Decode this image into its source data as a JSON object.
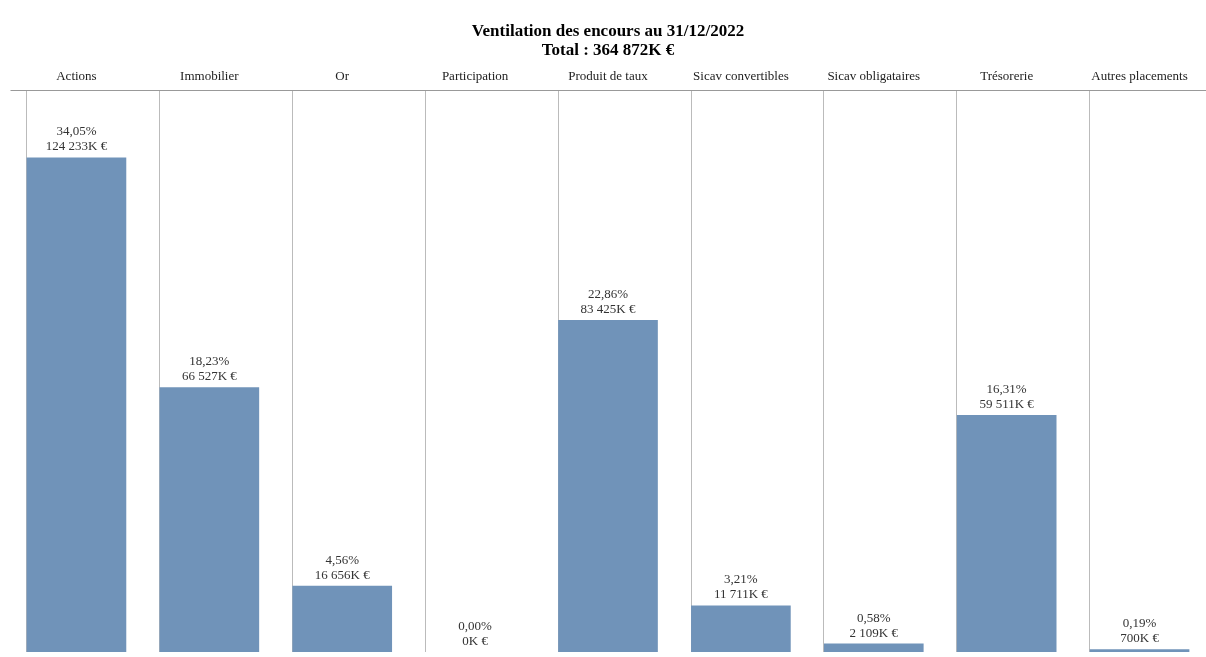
{
  "chart_data": {
    "type": "bar",
    "title": "Ventilation des encours au 31/12/2022",
    "subtitle": "Total : 364 872K €",
    "categories": [
      "Actions",
      "Immobilier",
      "Or",
      "Participation",
      "Produit de taux",
      "Sicav convertibles",
      "Sicav obligataires",
      "Trésorerie",
      "Autres placements"
    ],
    "values": [
      34.05,
      18.23,
      4.56,
      0,
      22.86,
      3.21,
      0.58,
      16.31,
      0.19
    ],
    "value_labels": [
      "34,05%\n124 233K €",
      "18,23%\n66 527K €",
      "4,56%\n16 656K €",
      "0,00%\n0K €",
      "22,86%\n83 425K €",
      "3,21%\n11 711K €",
      "0,58%\n2 109K €",
      "16,31%\n59 511K €",
      "0,19%\n700K €"
    ],
    "color": "#7093b9"
  }
}
